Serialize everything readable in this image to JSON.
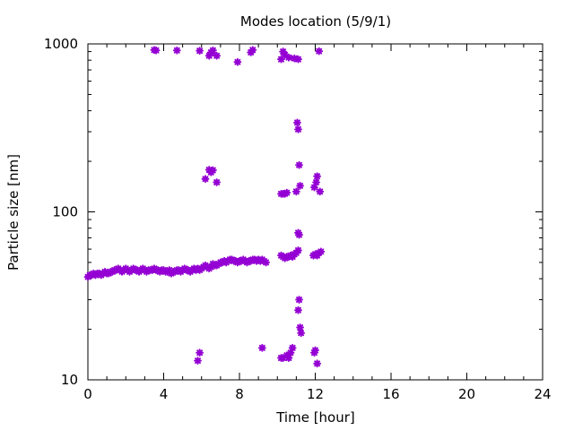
{
  "chart_data": {
    "type": "scatter",
    "title": "Modes location (5/9/1)",
    "xlabel": "Time [hour]",
    "ylabel": "Particle size [nm]",
    "xlim": [
      0,
      24
    ],
    "ylim": [
      10,
      1000
    ],
    "yscale": "log",
    "grid": false,
    "legend": "none",
    "marker_color": "#9400d3",
    "x_ticks": [
      0,
      4,
      8,
      12,
      16,
      20,
      24
    ],
    "x_tick_labels": [
      "0",
      "4",
      "8",
      "12",
      "16",
      "20",
      "24"
    ],
    "y_ticks": [
      10,
      100,
      1000
    ],
    "y_tick_labels": [
      "10",
      "100",
      "1000"
    ],
    "series": [
      {
        "x": [
          0.0,
          0.1,
          0.2,
          0.3,
          0.4,
          0.5,
          0.6,
          0.7,
          0.8,
          0.9,
          1.0,
          1.1,
          1.2,
          1.3,
          1.4,
          1.5,
          1.6,
          1.7,
          1.8,
          1.9,
          2.0,
          2.1,
          2.2,
          2.3,
          2.4,
          2.5,
          2.6,
          2.7,
          2.8,
          2.9,
          3.0,
          3.1,
          3.2,
          3.3,
          3.4,
          3.5,
          3.6,
          3.7,
          3.8,
          3.9,
          4.0,
          4.1,
          4.2,
          4.3,
          4.4,
          4.5,
          4.6,
          4.7,
          4.8,
          4.9,
          5.0,
          5.1,
          5.2,
          5.3,
          5.4,
          5.5,
          5.6,
          5.7,
          5.8,
          5.9,
          6.0,
          6.1,
          6.2,
          6.3,
          6.4,
          6.5,
          6.6,
          6.7,
          6.8,
          6.9,
          7.0,
          7.1,
          7.2,
          7.3,
          7.4,
          7.5,
          7.6,
          7.7,
          7.8,
          7.9,
          8.0,
          8.1,
          8.2,
          8.3,
          8.4,
          8.5,
          8.6,
          8.7,
          8.8,
          8.9,
          9.0,
          9.1,
          9.2,
          9.3,
          9.4,
          10.2,
          10.3,
          10.4,
          10.5,
          10.6,
          10.7,
          10.8,
          10.9,
          11.0,
          11.1,
          11.9,
          12.0,
          12.1,
          12.2,
          12.3,
          3.5,
          3.6,
          4.7,
          5.9,
          6.4,
          6.5,
          6.6,
          6.8,
          7.9,
          8.6,
          8.7,
          10.2,
          10.3,
          10.4,
          10.6,
          10.9,
          11.1,
          12.2,
          6.2,
          6.4,
          6.5,
          6.6,
          6.8,
          10.2,
          10.3,
          10.4,
          10.5,
          11.0,
          11.05,
          11.1,
          11.15,
          11.2,
          11.95,
          12.05,
          12.1,
          12.25,
          11.1,
          11.15,
          5.8,
          5.9,
          9.2,
          10.2,
          10.3,
          10.5,
          10.6,
          10.7,
          10.8,
          11.1,
          11.15,
          11.2,
          11.25,
          11.95,
          12.0,
          12.1
        ],
        "y": [
          41,
          42,
          42,
          43,
          42,
          43,
          43,
          42,
          43,
          44,
          43,
          43,
          44,
          44,
          45,
          45,
          46,
          45,
          44,
          45,
          46,
          45,
          44,
          45,
          46,
          45,
          45,
          44,
          45,
          46,
          45,
          44,
          45,
          45,
          45,
          46,
          45,
          45,
          44,
          45,
          45,
          44,
          44,
          45,
          43,
          44,
          44,
          45,
          45,
          44,
          45,
          46,
          45,
          45,
          44,
          45,
          46,
          45,
          46,
          45,
          46,
          47,
          48,
          47,
          46,
          47,
          49,
          48,
          48,
          49,
          50,
          50,
          51,
          50,
          51,
          52,
          52,
          51,
          51,
          50,
          51,
          51,
          52,
          51,
          50,
          51,
          51,
          52,
          52,
          51,
          52,
          51,
          52,
          51,
          50,
          55,
          54,
          53,
          54,
          54,
          55,
          54,
          56,
          57,
          59,
          55,
          56,
          55,
          57,
          58,
          920,
          915,
          915,
          910,
          850,
          890,
          915,
          850,
          780,
          890,
          920,
          810,
          900,
          860,
          830,
          820,
          810,
          905,
          157,
          178,
          172,
          177,
          150,
          128,
          128,
          128,
          130,
          132,
          340,
          310,
          190,
          143,
          140,
          150,
          163,
          132,
          75,
          73,
          13.0,
          14.5,
          15.5,
          13.5,
          13.5,
          14.0,
          13.5,
          14.5,
          15.5,
          26,
          30,
          20.5,
          19.0,
          14.5,
          15.0,
          12.5
        ]
      }
    ]
  }
}
